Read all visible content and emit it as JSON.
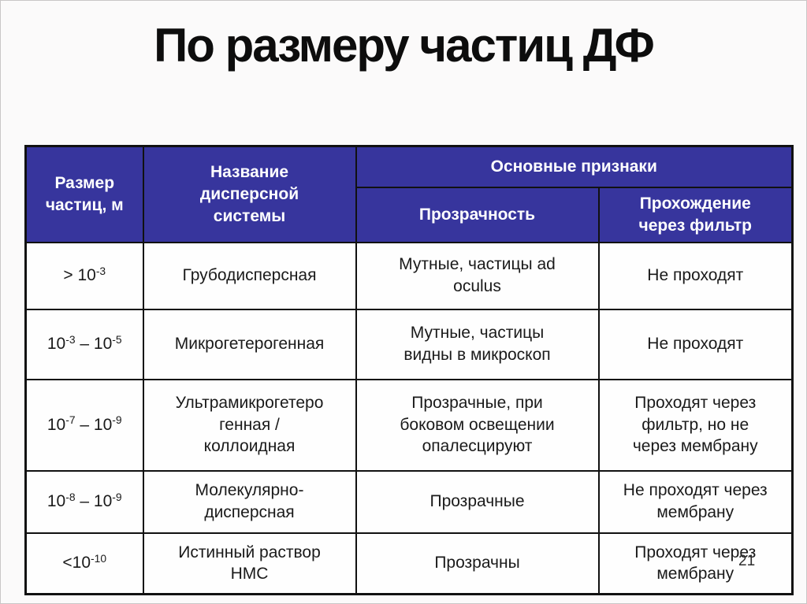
{
  "slide": {
    "title": "По размеру частиц ДФ",
    "page_number": "21",
    "colors": {
      "header_bg": "#37359d",
      "header_text": "#ffffff",
      "table_border": "#111111",
      "title_color": "#0d0d0d",
      "background": "#fbfafa"
    }
  },
  "table": {
    "headers": {
      "col_size": "Размер\nчастиц, м",
      "col_name": "Название\nдисперсной\nсистемы",
      "group_main": "Основные признаки",
      "col_transparency": "Прозрачность",
      "col_filter": "Прохождение\nчерез фильтр"
    },
    "rows": [
      {
        "size_segments": [
          {
            "t": "> 10"
          },
          {
            "t": "-3",
            "sup": true
          }
        ],
        "name": "Грубодисперсная",
        "transparency": "Мутные, частицы ad\noculus",
        "filter": "Не проходят"
      },
      {
        "size_segments": [
          {
            "t": "10"
          },
          {
            "t": "-3",
            "sup": true
          },
          {
            "t": " – 10"
          },
          {
            "t": "-5",
            "sup": true
          }
        ],
        "name": "Микрогетерогенная",
        "transparency": "Мутные, частицы\nвидны в микроскоп",
        "filter": "Не проходят"
      },
      {
        "size_segments": [
          {
            "t": "10"
          },
          {
            "t": "-7",
            "sup": true
          },
          {
            "t": " – 10"
          },
          {
            "t": "-9",
            "sup": true
          }
        ],
        "name": "Ультрамикрогетеро\nгенная /\nколлоидная",
        "transparency": "Прозрачные, при\nбоковом освещении\nопалесцируют",
        "filter": "Проходят через\nфильтр, но не\nчерез мембрану"
      },
      {
        "size_segments": [
          {
            "t": "10"
          },
          {
            "t": "-8",
            "sup": true
          },
          {
            "t": " – 10"
          },
          {
            "t": "-9",
            "sup": true
          }
        ],
        "name": "Молекулярно-\nдисперсная",
        "transparency": "Прозрачные",
        "filter": "Не проходят через\nмембрану"
      },
      {
        "size_segments": [
          {
            "t": "<10"
          },
          {
            "t": "-10",
            "sup": true
          }
        ],
        "name": "Истинный раствор\nНМС",
        "transparency": "Прозрачны",
        "filter": "Проходят через\nмембрану"
      }
    ]
  }
}
